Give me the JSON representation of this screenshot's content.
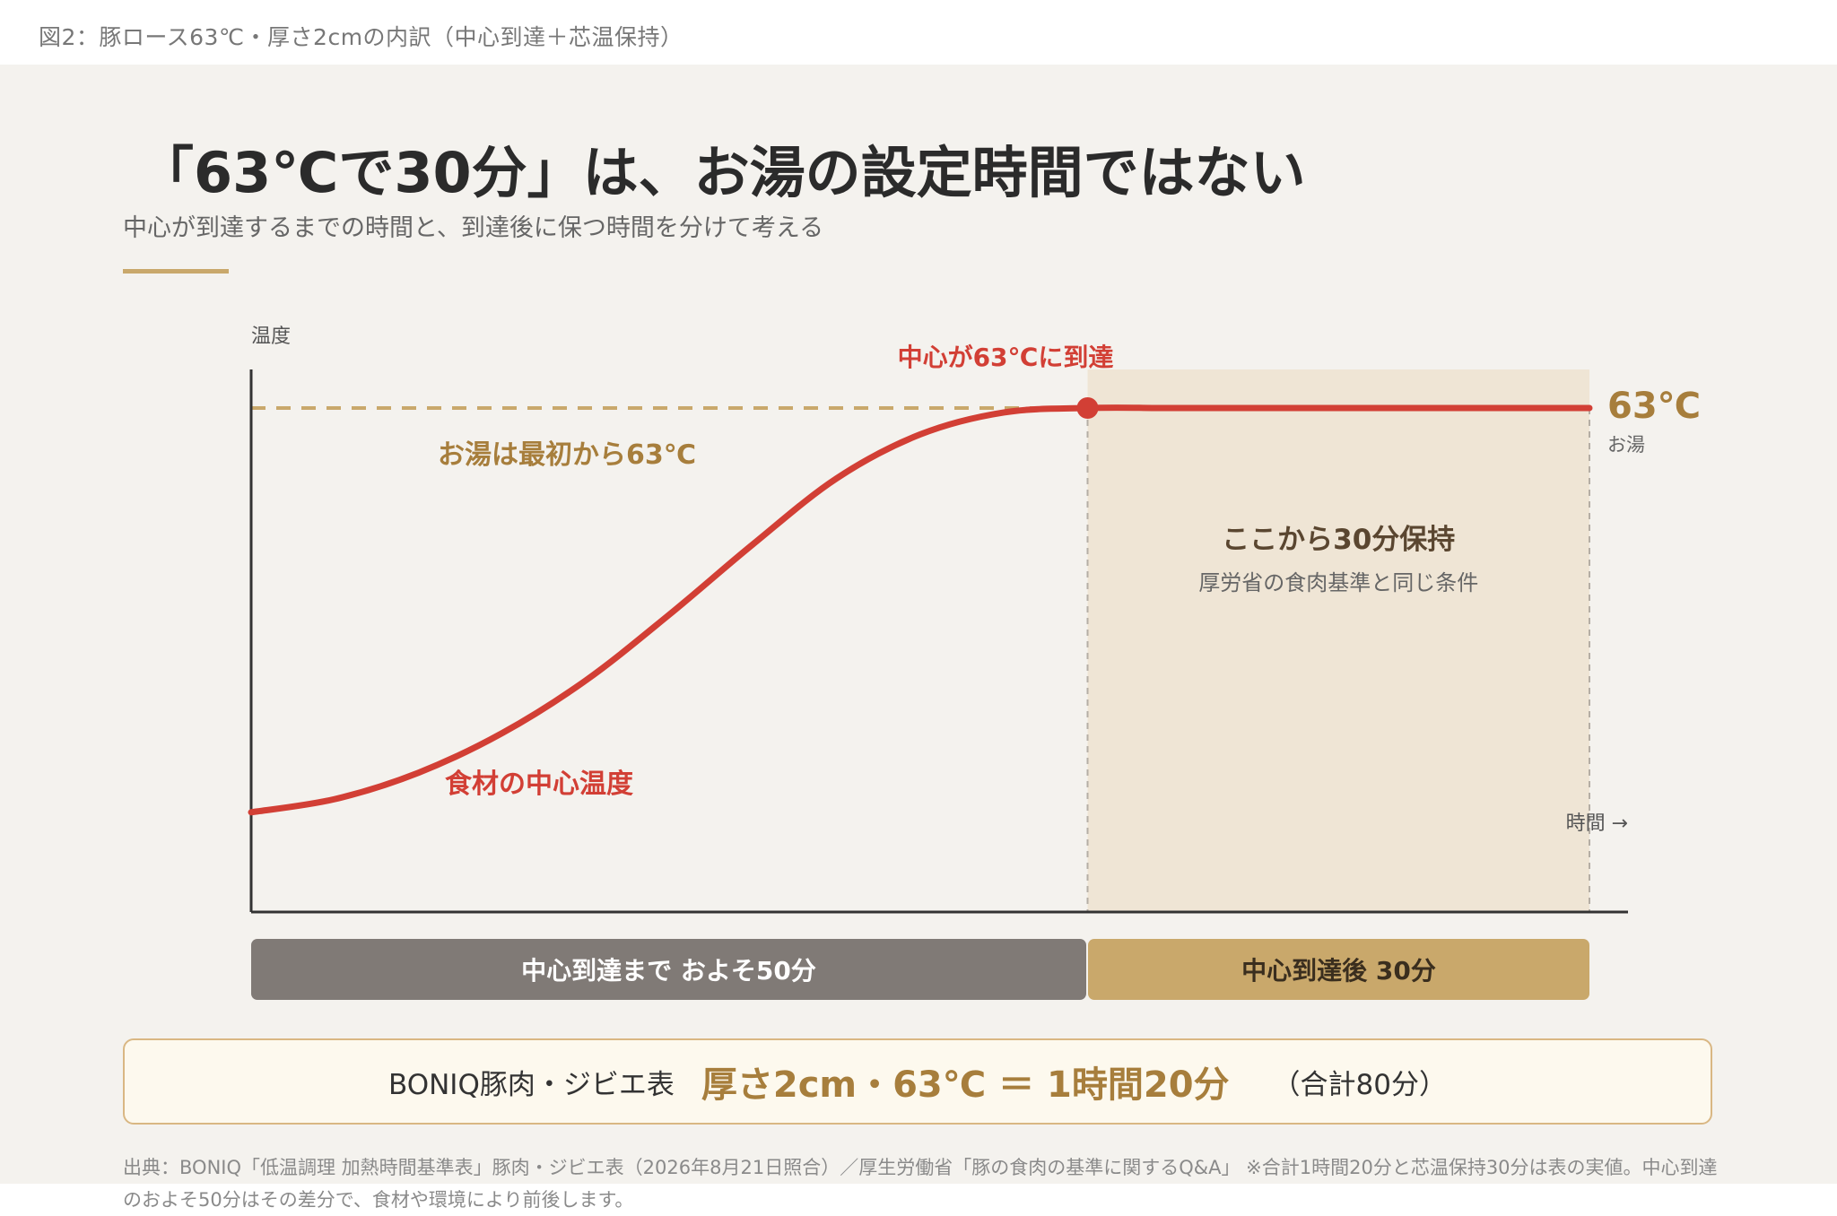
{
  "caption": "図2：豚ロース63℃・厚さ2cmの内訳（中心到達＋芯温保持）",
  "title": "「63℃で30分」は、お湯の設定時間ではない",
  "subtitle": "中心が到達するまでの時間と、到達後に保つ時間を分けて考える",
  "colors": {
    "accent": "#c9a86b",
    "core_line": "#d23f35",
    "dark_gold": "#a77e3c",
    "hold_region": "#efe5d5",
    "phase_gray": "#807a76",
    "axis": "#333333"
  },
  "chart_data": {
    "type": "line",
    "ylabel": "温度",
    "xlabel": "時間 →",
    "x_unit": "分",
    "xlim": [
      0,
      80
    ],
    "series": [
      {
        "name": "食材の中心温度",
        "x": [
          0,
          5,
          10,
          15,
          20,
          25,
          30,
          35,
          40,
          45,
          50,
          55,
          60,
          65,
          70,
          75,
          80
        ],
        "level": [
          0.08,
          0.11,
          0.17,
          0.26,
          0.38,
          0.53,
          0.69,
          0.84,
          0.94,
          0.99,
          1.0,
          1.0,
          1.0,
          1.0,
          1.0,
          1.0,
          1.0
        ]
      }
    ],
    "reference_line": {
      "level": 1.0,
      "label": "お湯は最初から63℃"
    },
    "right_label": {
      "value": "63℃",
      "sub": "お湯"
    },
    "reach_marker": {
      "x": 50,
      "label": "中心が63℃に到達"
    },
    "hold_region": {
      "x_start": 50,
      "x_end": 80,
      "title": "ここから30分保持",
      "subtitle": "厚労省の食肉基準と同じ条件"
    }
  },
  "phases": {
    "before": "中心到達まで およそ50分",
    "after": "中心到達後 30分"
  },
  "summary": {
    "source": "BONIQ豚肉・ジビエ表",
    "value": "厚さ2cm・63℃ ＝ 1時間20分",
    "total": "（合計80分）"
  },
  "source_note": "出典：BONIQ「低温調理 加熱時間基準表」豚肉・ジビエ表（2026年8月21日照合）／厚生労働省「豚の食肉の基準に関するQ&A」 ※合計1時間20分と芯温保持30分は表の実値。中心到達のおよそ50分はその差分で、食材や環境により前後します。"
}
